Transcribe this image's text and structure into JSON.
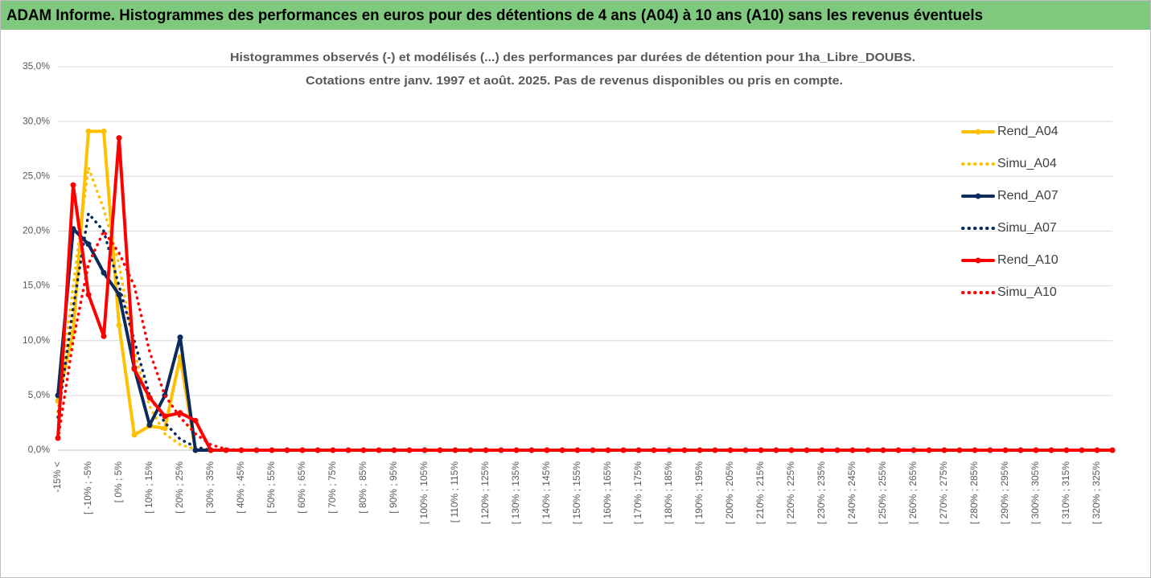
{
  "chart_data": {
    "type": "line",
    "title": "ADAM Informe. Histogrammes des performances en euros pour des détentions de 4 ans (A04) à 10 ans (A10) sans les revenus éventuels",
    "subtitle": [
      "Histogrammes observés (-) et modélisés (...) des performances par durées de détention pour 1ha_Libre_DOUBS.",
      "Cotations entre janv. 1997 et août. 2025. Pas de revenus disponibles ou pris en compte."
    ],
    "categories": [
      "-15% <",
      null,
      "[ -10% ; -5%",
      null,
      "[ 0% ; 5%",
      null,
      "[ 10% ; 15%",
      null,
      "[ 20% ; 25%",
      null,
      "[ 30% ; 35%",
      null,
      "[ 40% ; 45%",
      null,
      "[ 50% ; 55%",
      null,
      "[ 60% ; 65%",
      null,
      "[ 70% ; 75%",
      null,
      "[ 80% ; 85%",
      null,
      "[ 90% ; 95%",
      null,
      "[ 100% ; 105%",
      null,
      "[ 110% ; 115%",
      null,
      "[ 120% ; 125%",
      null,
      "[ 130% ; 135%",
      null,
      "[ 140% ; 145%",
      null,
      "[ 150% ; 155%",
      null,
      "[ 160% ; 165%",
      null,
      "[ 170% ; 175%",
      null,
      "[ 180% ; 185%",
      null,
      "[ 190% ; 195%",
      null,
      "[ 200% ; 205%",
      null,
      "[ 210% ; 215%",
      null,
      "[ 220% ; 225%",
      null,
      "[ 230% ; 235%",
      null,
      "[ 240% ; 245%",
      null,
      "[ 250% ; 255%",
      null,
      "[ 260% ; 265%",
      null,
      "[ 270% ; 275%",
      null,
      "[ 280% ; 285%",
      null,
      "[ 290% ; 295%",
      null,
      "[ 300% ; 305%",
      null,
      "[ 310% ; 315%",
      null,
      "[ 320% ; 325%",
      null
    ],
    "series": [
      {
        "name": "Rend_A04",
        "color": "#ffc000",
        "style": "solid",
        "values": [
          4.5,
          10.8,
          29.1,
          29.1,
          11.4,
          1.4,
          2.2,
          2.0,
          8.5,
          0,
          0,
          0,
          0,
          0,
          0,
          0,
          0,
          0,
          0,
          0,
          0,
          0,
          0,
          0,
          0,
          0,
          0,
          0,
          0,
          0,
          0,
          0,
          0,
          0,
          0,
          0,
          0,
          0,
          0,
          0,
          0,
          0,
          0,
          0,
          0,
          0,
          0,
          0,
          0,
          0,
          0,
          0,
          0,
          0,
          0,
          0,
          0,
          0,
          0,
          0,
          0,
          0,
          0,
          0,
          0,
          0,
          0,
          0,
          0,
          0
        ]
      },
      {
        "name": "Simu_A04",
        "color": "#ffc000",
        "style": "dotted",
        "values": [
          3.5,
          15,
          25.8,
          22,
          17,
          9,
          4,
          1.5,
          0.5,
          0.1,
          0,
          0,
          0,
          0,
          0,
          0,
          0,
          0,
          0,
          0,
          0,
          0,
          0,
          0,
          0,
          0,
          0,
          0,
          0,
          0,
          0,
          0,
          0,
          0,
          0,
          0,
          0,
          0,
          0,
          0,
          0,
          0,
          0,
          0,
          0,
          0,
          0,
          0,
          0,
          0,
          0,
          0,
          0,
          0,
          0,
          0,
          0,
          0,
          0,
          0,
          0,
          0,
          0,
          0,
          0,
          0,
          0,
          0,
          0,
          0
        ]
      },
      {
        "name": "Rend_A07",
        "color": "#0d2a5c",
        "style": "solid",
        "values": [
          5,
          20.2,
          18.8,
          16.2,
          14.2,
          7.5,
          2.3,
          5,
          10.3,
          0,
          0,
          0,
          0,
          0,
          0,
          0,
          0,
          0,
          0,
          0,
          0,
          0,
          0,
          0,
          0,
          0,
          0,
          0,
          0,
          0,
          0,
          0,
          0,
          0,
          0,
          0,
          0,
          0,
          0,
          0,
          0,
          0,
          0,
          0,
          0,
          0,
          0,
          0,
          0,
          0,
          0,
          0,
          0,
          0,
          0,
          0,
          0,
          0,
          0,
          0,
          0,
          0,
          0,
          0,
          0,
          0,
          0,
          0,
          0,
          0
        ]
      },
      {
        "name": "Simu_A07",
        "color": "#0d2a5c",
        "style": "dotted",
        "values": [
          3,
          13,
          21.6,
          20,
          15,
          10,
          5,
          2.5,
          1,
          0.3,
          0,
          0,
          0,
          0,
          0,
          0,
          0,
          0,
          0,
          0,
          0,
          0,
          0,
          0,
          0,
          0,
          0,
          0,
          0,
          0,
          0,
          0,
          0,
          0,
          0,
          0,
          0,
          0,
          0,
          0,
          0,
          0,
          0,
          0,
          0,
          0,
          0,
          0,
          0,
          0,
          0,
          0,
          0,
          0,
          0,
          0,
          0,
          0,
          0,
          0,
          0,
          0,
          0,
          0,
          0,
          0,
          0,
          0,
          0,
          0
        ]
      },
      {
        "name": "Rend_A10",
        "color": "#ff0000",
        "style": "solid",
        "values": [
          1.1,
          24.2,
          14.2,
          10.4,
          28.5,
          7.4,
          4.8,
          3.1,
          3.4,
          2.7,
          0,
          0,
          0,
          0,
          0,
          0,
          0,
          0,
          0,
          0,
          0,
          0,
          0,
          0,
          0,
          0,
          0,
          0,
          0,
          0,
          0,
          0,
          0,
          0,
          0,
          0,
          0,
          0,
          0,
          0,
          0,
          0,
          0,
          0,
          0,
          0,
          0,
          0,
          0,
          0,
          0,
          0,
          0,
          0,
          0,
          0,
          0,
          0,
          0,
          0,
          0,
          0,
          0,
          0,
          0,
          0,
          0,
          0,
          0,
          0
        ]
      },
      {
        "name": "Simu_A10",
        "color": "#ff0000",
        "style": "dotted",
        "values": [
          1,
          10,
          17,
          20,
          18,
          15,
          9,
          5,
          3,
          1.5,
          0.5,
          0.1,
          0,
          0,
          0,
          0,
          0,
          0,
          0,
          0,
          0,
          0,
          0,
          0,
          0,
          0,
          0,
          0,
          0,
          0,
          0,
          0,
          0,
          0,
          0,
          0,
          0,
          0,
          0,
          0,
          0,
          0,
          0,
          0,
          0,
          0,
          0,
          0,
          0,
          0,
          0,
          0,
          0,
          0,
          0,
          0,
          0,
          0,
          0,
          0,
          0,
          0,
          0,
          0,
          0,
          0,
          0,
          0,
          0,
          0
        ]
      }
    ],
    "ylim": [
      0,
      35
    ],
    "yticks": [
      {
        "value": 0,
        "label": "0,0%"
      },
      {
        "value": 5,
        "label": "5,0%"
      },
      {
        "value": 10,
        "label": "10,0%"
      },
      {
        "value": 15,
        "label": "15,0%"
      },
      {
        "value": 20,
        "label": "20,0%"
      },
      {
        "value": 25,
        "label": "25,0%"
      },
      {
        "value": 30,
        "label": "30,0%"
      },
      {
        "value": 35,
        "label": "35,0%"
      }
    ],
    "grid": true,
    "legend": "right"
  }
}
